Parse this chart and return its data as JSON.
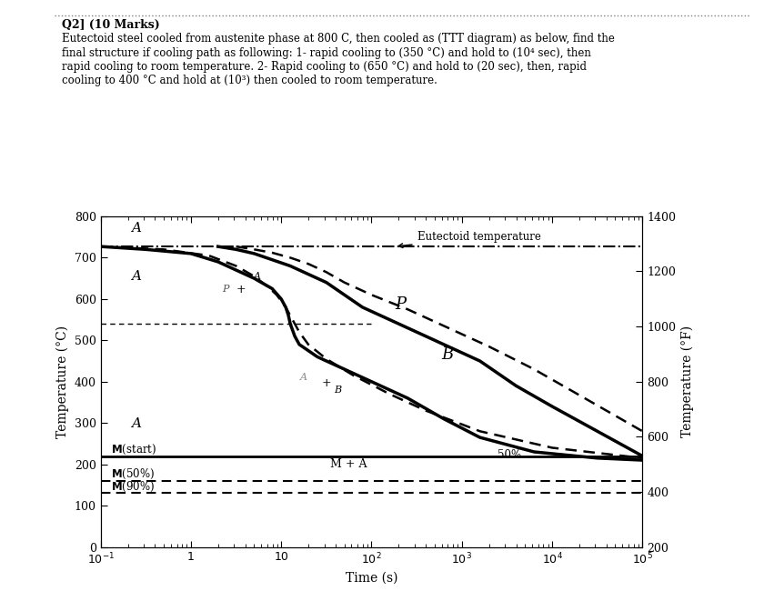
{
  "title_text": "Q2] (10 Marks)",
  "question_line1": "Eutectoid steel cooled from austenite phase at 800 C, then cooled as (TTT diagram) as below, find the",
  "question_line2": "final structure if cooling path as following: 1- rapid cooling to (350 °C) and hold to (10⁴ sec), then",
  "question_line3": "rapid cooling to room temperature. 2- Rapid cooling to (650 °C) and hold to (20 sec), then, rapid",
  "question_line4": "cooling to 400 °C and hold at (10³) then cooled to room temperature.",
  "eutectoid_temp": 727,
  "Ms_temp": 220,
  "M50_temp": 160,
  "M90_temp": 130,
  "xlabel": "Time (s)",
  "ylabel_left": "Temperature (°C)",
  "ylabel_right": "Temperature (°F)",
  "background_color": "#ffffff",
  "outer_start_logt": [
    -1,
    -0.5,
    0.0,
    0.3,
    0.5,
    0.7,
    0.9,
    1.0,
    1.05,
    1.08,
    1.1,
    1.15,
    1.2,
    1.4,
    1.7,
    2.0,
    2.4,
    2.8,
    3.2,
    3.8,
    4.5,
    5.0
  ],
  "outer_start_T": [
    727,
    720,
    710,
    690,
    670,
    650,
    625,
    600,
    580,
    560,
    540,
    510,
    490,
    460,
    430,
    400,
    360,
    310,
    265,
    230,
    215,
    210
  ],
  "outer_end_logt": [
    0.3,
    0.5,
    0.7,
    0.9,
    1.1,
    1.3,
    1.5,
    1.7,
    1.9,
    2.1,
    2.4,
    2.8,
    3.2,
    3.6,
    4.0,
    4.5,
    5.0
  ],
  "outer_end_T": [
    727,
    720,
    710,
    695,
    680,
    660,
    640,
    610,
    580,
    560,
    530,
    490,
    450,
    390,
    340,
    280,
    220
  ],
  "inner_start_logt": [
    -1,
    -0.3,
    0.2,
    0.5,
    0.7,
    0.85,
    0.95,
    1.05,
    1.1,
    1.15,
    1.2,
    1.3,
    1.5,
    1.8,
    2.2,
    2.6,
    3.2,
    4.0,
    5.0
  ],
  "inner_start_T": [
    727,
    720,
    705,
    680,
    655,
    630,
    610,
    580,
    560,
    540,
    520,
    490,
    455,
    415,
    370,
    330,
    280,
    240,
    215
  ],
  "inner_end_logt": [
    0.5,
    0.7,
    0.9,
    1.1,
    1.3,
    1.5,
    1.7,
    2.0,
    2.4,
    2.8,
    3.3,
    3.8,
    4.4,
    5.0
  ],
  "inner_end_T": [
    727,
    720,
    712,
    700,
    685,
    665,
    640,
    610,
    575,
    535,
    485,
    430,
    355,
    280
  ],
  "yticks_C": [
    0,
    100,
    200,
    300,
    400,
    500,
    600,
    700,
    800
  ],
  "yticks_F_pos": [
    0,
    133,
    267,
    400,
    533,
    667,
    800
  ],
  "yticks_F_labels": [
    "200",
    "400",
    "600",
    "800",
    "1000",
    "1200",
    "1400"
  ]
}
